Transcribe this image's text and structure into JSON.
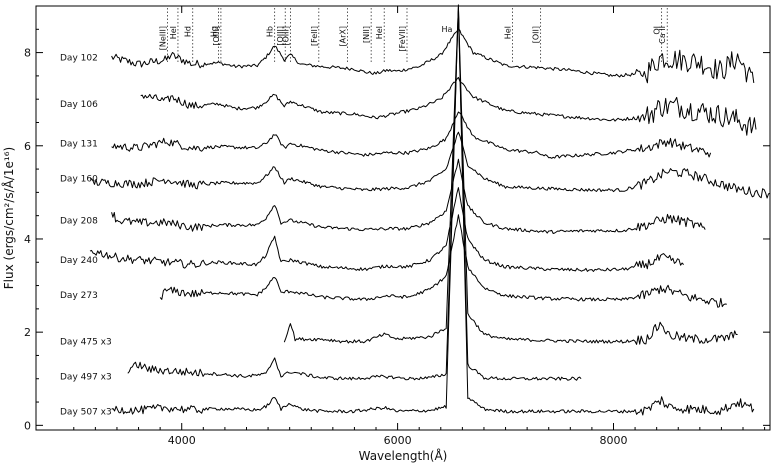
{
  "chart_data": {
    "type": "line",
    "title": "",
    "xlabel": "Wavelength(Å)",
    "ylabel": "Flux (ergs/cm²/s/Å/1e¹⁶)",
    "xlim": [
      2650,
      9450
    ],
    "ylim": [
      -0.1,
      9.0
    ],
    "xticks": [
      4000,
      6000,
      8000
    ],
    "yticks": [
      0,
      2,
      4,
      6,
      8
    ],
    "grid": false,
    "legend": "none",
    "line_color": "#000000",
    "series": [
      {
        "name": "Day 102",
        "label_y": 7.9,
        "x_start": 3350,
        "x_end": 9300,
        "points": [
          [
            3350,
            7.9
          ],
          [
            3600,
            7.75
          ],
          [
            3860,
            7.85
          ],
          [
            3900,
            7.95
          ],
          [
            4100,
            7.75
          ],
          [
            4340,
            7.78
          ],
          [
            4500,
            7.7
          ],
          [
            4700,
            7.72
          ],
          [
            4780,
            7.9
          ],
          [
            4861,
            8.15
          ],
          [
            4950,
            7.85
          ],
          [
            5007,
            7.95
          ],
          [
            5100,
            7.75
          ],
          [
            5300,
            7.7
          ],
          [
            5600,
            7.65
          ],
          [
            5700,
            7.58
          ],
          [
            5800,
            7.55
          ],
          [
            5900,
            7.62
          ],
          [
            6000,
            7.6
          ],
          [
            6200,
            7.7
          ],
          [
            6400,
            7.95
          ],
          [
            6563,
            8.5
          ],
          [
            6700,
            8.0
          ],
          [
            7000,
            7.72
          ],
          [
            7300,
            7.68
          ],
          [
            7600,
            7.62
          ],
          [
            8000,
            7.5
          ],
          [
            8300,
            7.55
          ],
          [
            8440,
            7.9
          ],
          [
            8600,
            7.85
          ],
          [
            8800,
            7.8
          ],
          [
            9000,
            7.6
          ],
          [
            9150,
            7.9
          ],
          [
            9300,
            7.35
          ]
        ]
      },
      {
        "name": "Day 106",
        "label_y": 6.9,
        "x_start": 3620,
        "x_end": 9320,
        "points": [
          [
            3620,
            7.1
          ],
          [
            3860,
            6.95
          ],
          [
            3900,
            7.05
          ],
          [
            4100,
            6.85
          ],
          [
            4340,
            6.9
          ],
          [
            4500,
            6.8
          ],
          [
            4700,
            6.82
          ],
          [
            4780,
            6.95
          ],
          [
            4861,
            7.1
          ],
          [
            4950,
            6.85
          ],
          [
            5007,
            6.95
          ],
          [
            5300,
            6.72
          ],
          [
            5600,
            6.68
          ],
          [
            5800,
            6.6
          ],
          [
            6000,
            6.7
          ],
          [
            6200,
            6.8
          ],
          [
            6400,
            7.0
          ],
          [
            6563,
            7.45
          ],
          [
            6700,
            7.05
          ],
          [
            7000,
            6.75
          ],
          [
            7300,
            6.68
          ],
          [
            7600,
            6.62
          ],
          [
            8000,
            6.55
          ],
          [
            8300,
            6.62
          ],
          [
            8440,
            6.85
          ],
          [
            8600,
            6.85
          ],
          [
            8800,
            6.75
          ],
          [
            9000,
            6.65
          ],
          [
            9150,
            6.55
          ],
          [
            9320,
            6.35
          ]
        ]
      },
      {
        "name": "Day 131",
        "label_y": 6.05,
        "x_start": 3350,
        "x_end": 8900,
        "points": [
          [
            3350,
            6.0
          ],
          [
            3600,
            5.95
          ],
          [
            3860,
            6.1
          ],
          [
            4100,
            5.95
          ],
          [
            4340,
            5.98
          ],
          [
            4700,
            5.95
          ],
          [
            4780,
            6.05
          ],
          [
            4861,
            6.25
          ],
          [
            4950,
            5.95
          ],
          [
            5007,
            6.05
          ],
          [
            5300,
            5.9
          ],
          [
            5700,
            5.8
          ],
          [
            5900,
            5.85
          ],
          [
            6100,
            5.85
          ],
          [
            6300,
            5.95
          ],
          [
            6450,
            6.15
          ],
          [
            6563,
            6.75
          ],
          [
            6700,
            6.2
          ],
          [
            7000,
            5.92
          ],
          [
            7300,
            5.85
          ],
          [
            7400,
            5.75
          ],
          [
            8000,
            5.85
          ],
          [
            8300,
            5.95
          ],
          [
            8500,
            6.1
          ],
          [
            8700,
            5.95
          ],
          [
            8900,
            5.85
          ]
        ]
      },
      {
        "name": "Day 160",
        "label_y": 5.3,
        "x_start": 3150,
        "x_end": 9450,
        "points": [
          [
            3150,
            5.22
          ],
          [
            3400,
            5.2
          ],
          [
            3600,
            5.18
          ],
          [
            3860,
            5.28
          ],
          [
            4100,
            5.15
          ],
          [
            4340,
            5.2
          ],
          [
            4700,
            5.2
          ],
          [
            4780,
            5.35
          ],
          [
            4861,
            5.55
          ],
          [
            4950,
            5.2
          ],
          [
            5007,
            5.3
          ],
          [
            5300,
            5.12
          ],
          [
            5700,
            5.05
          ],
          [
            5900,
            5.08
          ],
          [
            6100,
            5.1
          ],
          [
            6300,
            5.25
          ],
          [
            6450,
            5.5
          ],
          [
            6563,
            6.3
          ],
          [
            6650,
            5.6
          ],
          [
            6800,
            5.3
          ],
          [
            7000,
            5.12
          ],
          [
            7400,
            5.08
          ],
          [
            7800,
            5.05
          ],
          [
            8100,
            5.05
          ],
          [
            8300,
            5.2
          ],
          [
            8500,
            5.45
          ],
          [
            8700,
            5.4
          ],
          [
            8900,
            5.25
          ],
          [
            9100,
            5.1
          ],
          [
            9300,
            5.0
          ],
          [
            9450,
            4.98
          ]
        ]
      },
      {
        "name": "Day 208",
        "label_y": 4.4,
        "x_start": 3350,
        "x_end": 8850,
        "points": [
          [
            3350,
            4.6
          ],
          [
            3400,
            4.4
          ],
          [
            3600,
            4.35
          ],
          [
            3860,
            4.35
          ],
          [
            4100,
            4.25
          ],
          [
            4340,
            4.3
          ],
          [
            4700,
            4.3
          ],
          [
            4780,
            4.45
          ],
          [
            4861,
            4.75
          ],
          [
            4920,
            4.35
          ],
          [
            5007,
            4.4
          ],
          [
            5300,
            4.25
          ],
          [
            5700,
            4.2
          ],
          [
            5900,
            4.22
          ],
          [
            6100,
            4.22
          ],
          [
            6300,
            4.35
          ],
          [
            6450,
            4.6
          ],
          [
            6563,
            5.7
          ],
          [
            6650,
            4.7
          ],
          [
            6800,
            4.35
          ],
          [
            7000,
            4.22
          ],
          [
            7400,
            4.15
          ],
          [
            7800,
            4.18
          ],
          [
            8100,
            4.18
          ],
          [
            8300,
            4.3
          ],
          [
            8500,
            4.45
          ],
          [
            8700,
            4.35
          ],
          [
            8850,
            4.2
          ]
        ]
      },
      {
        "name": "Day 240",
        "label_y": 3.55,
        "x_start": 3150,
        "x_end": 8650,
        "points": [
          [
            3150,
            3.75
          ],
          [
            3250,
            3.7
          ],
          [
            3400,
            3.6
          ],
          [
            3600,
            3.55
          ],
          [
            3860,
            3.5
          ],
          [
            4100,
            3.45
          ],
          [
            4340,
            3.5
          ],
          [
            4700,
            3.45
          ],
          [
            4780,
            3.65
          ],
          [
            4861,
            4.05
          ],
          [
            4920,
            3.5
          ],
          [
            5007,
            3.55
          ],
          [
            5300,
            3.4
          ],
          [
            5700,
            3.35
          ],
          [
            5900,
            3.42
          ],
          [
            6100,
            3.4
          ],
          [
            6300,
            3.55
          ],
          [
            6450,
            3.85
          ],
          [
            6563,
            5.1
          ],
          [
            6650,
            4.0
          ],
          [
            6800,
            3.55
          ],
          [
            7000,
            3.4
          ],
          [
            7400,
            3.35
          ],
          [
            7800,
            3.33
          ],
          [
            8100,
            3.35
          ],
          [
            8300,
            3.45
          ],
          [
            8450,
            3.6
          ],
          [
            8650,
            3.45
          ]
        ]
      },
      {
        "name": "Day 273",
        "label_y": 2.8,
        "x_start": 3800,
        "x_end": 9050,
        "points": [
          [
            3800,
            2.75
          ],
          [
            3860,
            2.9
          ],
          [
            4100,
            2.82
          ],
          [
            4340,
            2.85
          ],
          [
            4700,
            2.8
          ],
          [
            4780,
            2.95
          ],
          [
            4861,
            3.2
          ],
          [
            4920,
            2.85
          ],
          [
            5007,
            2.88
          ],
          [
            5300,
            2.75
          ],
          [
            5700,
            2.7
          ],
          [
            5900,
            2.78
          ],
          [
            6100,
            2.75
          ],
          [
            6300,
            2.92
          ],
          [
            6450,
            3.2
          ],
          [
            6563,
            4.5
          ],
          [
            6650,
            3.4
          ],
          [
            6800,
            2.95
          ],
          [
            7000,
            2.78
          ],
          [
            7400,
            2.72
          ],
          [
            7800,
            2.7
          ],
          [
            8100,
            2.7
          ],
          [
            8300,
            2.8
          ],
          [
            8450,
            2.95
          ],
          [
            8700,
            2.75
          ],
          [
            9050,
            2.6
          ]
        ]
      },
      {
        "name": "Day 475 x3",
        "label_y": 1.8,
        "x_start": 4950,
        "x_end": 9150,
        "points": [
          [
            4950,
            1.8
          ],
          [
            5007,
            2.2
          ],
          [
            5050,
            1.85
          ],
          [
            5300,
            1.85
          ],
          [
            5500,
            1.8
          ],
          [
            5700,
            1.8
          ],
          [
            5876,
            1.95
          ],
          [
            6000,
            1.85
          ],
          [
            6300,
            1.9
          ],
          [
            6450,
            2.1
          ],
          [
            6563,
            9.0
          ],
          [
            6650,
            2.4
          ],
          [
            6800,
            1.95
          ],
          [
            7000,
            1.85
          ],
          [
            7400,
            1.82
          ],
          [
            7800,
            1.8
          ],
          [
            8100,
            1.8
          ],
          [
            8300,
            1.85
          ],
          [
            8446,
            2.2
          ],
          [
            8500,
            1.95
          ],
          [
            8700,
            1.85
          ],
          [
            9000,
            1.85
          ],
          [
            9150,
            1.95
          ]
        ]
      },
      {
        "name": "Day 497 x3",
        "label_y": 1.05,
        "x_start": 3500,
        "x_end": 7700,
        "points": [
          [
            3500,
            1.2
          ],
          [
            3600,
            1.3
          ],
          [
            3700,
            1.2
          ],
          [
            4000,
            1.15
          ],
          [
            4340,
            1.1
          ],
          [
            4600,
            1.05
          ],
          [
            4780,
            1.1
          ],
          [
            4861,
            1.45
          ],
          [
            4920,
            1.05
          ],
          [
            5007,
            1.15
          ],
          [
            5300,
            1.02
          ],
          [
            5600,
            1.0
          ],
          [
            5876,
            1.05
          ],
          [
            6100,
            1.0
          ],
          [
            6300,
            1.02
          ],
          [
            6450,
            1.1
          ],
          [
            6563,
            8.9
          ],
          [
            6650,
            1.3
          ],
          [
            6800,
            1.02
          ],
          [
            7000,
            1.0
          ],
          [
            7300,
            1.0
          ],
          [
            7700,
            1.0
          ]
        ]
      },
      {
        "name": "Day 507 x3",
        "label_y": 0.3,
        "x_start": 3350,
        "x_end": 9300,
        "points": [
          [
            3350,
            0.35
          ],
          [
            3600,
            0.32
          ],
          [
            3860,
            0.38
          ],
          [
            4100,
            0.33
          ],
          [
            4340,
            0.36
          ],
          [
            4700,
            0.33
          ],
          [
            4780,
            0.4
          ],
          [
            4861,
            0.6
          ],
          [
            4920,
            0.35
          ],
          [
            5007,
            0.48
          ],
          [
            5100,
            0.35
          ],
          [
            5300,
            0.3
          ],
          [
            5600,
            0.3
          ],
          [
            5876,
            0.38
          ],
          [
            6000,
            0.3
          ],
          [
            6300,
            0.32
          ],
          [
            6450,
            0.4
          ],
          [
            6563,
            9.0
          ],
          [
            6650,
            0.6
          ],
          [
            6800,
            0.35
          ],
          [
            7000,
            0.3
          ],
          [
            7400,
            0.3
          ],
          [
            7800,
            0.3
          ],
          [
            8100,
            0.3
          ],
          [
            8300,
            0.32
          ],
          [
            8446,
            0.55
          ],
          [
            8500,
            0.4
          ],
          [
            8700,
            0.35
          ],
          [
            9000,
            0.32
          ],
          [
            9150,
            0.5
          ],
          [
            9300,
            0.35
          ]
        ]
      }
    ],
    "line_ids": [
      {
        "label": "[NeIII]",
        "x": 3869
      },
      {
        "label": "HeI",
        "x": 3965
      },
      {
        "label": "Hd",
        "x": 4102
      },
      {
        "label": "Hg",
        "x": 4340
      },
      {
        "label": "[OIII]",
        "x": 4363
      },
      {
        "label": "Hb",
        "x": 4861
      },
      {
        "label": "[OIII]",
        "x": 4959
      },
      {
        "label": "[OIII]",
        "x": 5007
      },
      {
        "label": "[FeII]",
        "x": 5270
      },
      {
        "label": "[ArX]",
        "x": 5535
      },
      {
        "label": "[NII]",
        "x": 5755
      },
      {
        "label": "HeI",
        "x": 5876
      },
      {
        "label": "[FeVII]",
        "x": 6087
      },
      {
        "label": "Ha",
        "x": 6563
      },
      {
        "label": "HeI",
        "x": 7065
      },
      {
        "label": "[OII]",
        "x": 7325
      },
      {
        "label": "OI",
        "x": 8446
      },
      {
        "label": "Ca II",
        "x": 8498
      }
    ]
  }
}
